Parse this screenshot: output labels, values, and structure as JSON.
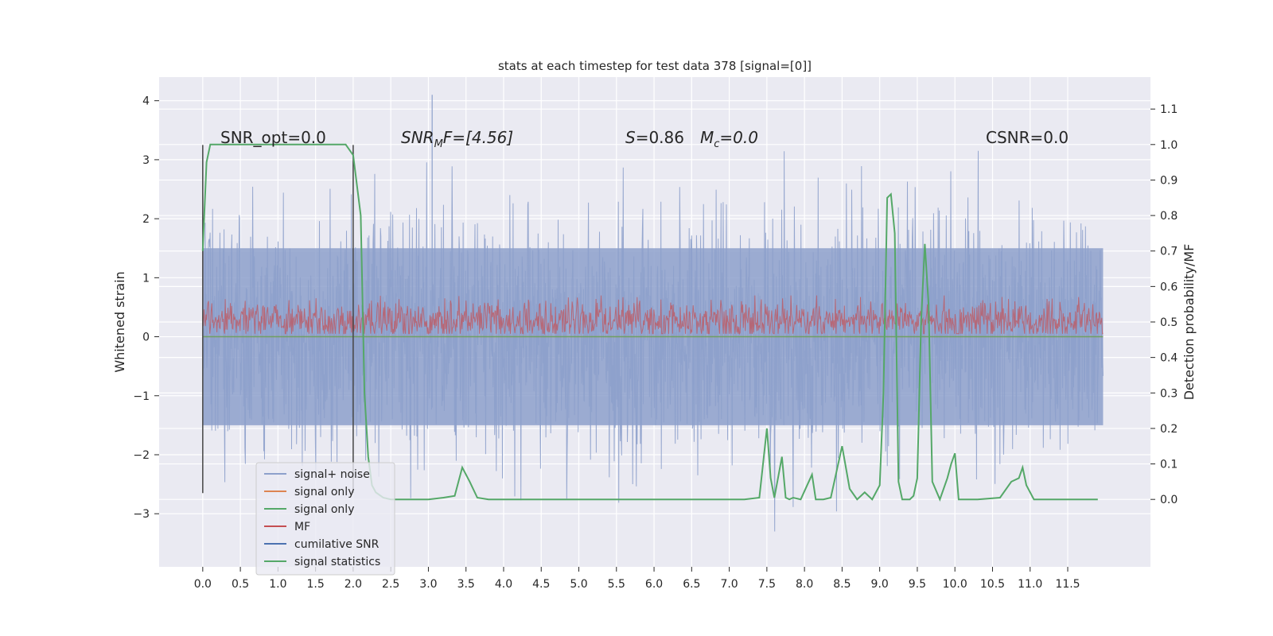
{
  "chart_data": {
    "type": "line",
    "title": "stats at each timestep for test data 378 [signal=[0]]",
    "xlabel": "",
    "ylabel": "Whitened strain",
    "ylabel_right": "Detection probability/MF",
    "xlim": [
      -0.58,
      12.6
    ],
    "ylim": [
      -3.9,
      4.4
    ],
    "ylim_right": [
      -0.19,
      1.19
    ],
    "x_ticks": [
      "0.0",
      "0.5",
      "1.0",
      "1.5",
      "2.0",
      "2.5",
      "3.0",
      "3.5",
      "4.0",
      "4.5",
      "5.0",
      "5.5",
      "6.0",
      "6.5",
      "7.0",
      "7.5",
      "8.0",
      "8.5",
      "9.0",
      "9.5",
      "10.0",
      "10.5",
      "11.0",
      "11.5"
    ],
    "y_ticks": [
      "4",
      "3",
      "2",
      "1",
      "0",
      "−1",
      "−2",
      "−3"
    ],
    "y_ticks_right": [
      "1.1",
      "1.0",
      "0.9",
      "0.8",
      "0.7",
      "0.6",
      "0.5",
      "0.4",
      "0.3",
      "0.2",
      "0.1",
      "0.0"
    ],
    "grid": true,
    "legend_position": "lower-left",
    "annotations": [
      {
        "text": "SNR_opt=0.0"
      },
      {
        "text": "SNR",
        "sub": "M",
        "tail": "F=[4.56]"
      },
      {
        "text": "S",
        "tail": "=0.86"
      },
      {
        "text": "M",
        "sub": "c",
        "tail": "=0.0"
      },
      {
        "text": "CSNR=0.0"
      }
    ],
    "vlines": [
      0.0,
      2.0
    ],
    "series": [
      {
        "name": "signal+ noise",
        "color": "#8da0cb",
        "x_range": [
          0.0,
          11.97
        ],
        "band_envelope": 1.5,
        "spike_max": 4.1
      },
      {
        "name": "signal only",
        "color": "#dd8452",
        "x_range": [
          0.0,
          11.97
        ],
        "values": [
          0
        ]
      },
      {
        "name": "signal only",
        "color": "#55a868",
        "x_range": [
          0.0,
          11.97
        ],
        "values": [
          0
        ]
      },
      {
        "name": "MF",
        "color": "#c44e52",
        "x_range": [
          0.0,
          11.97
        ],
        "band": [
          0.05,
          0.7
        ],
        "center": 0.27
      },
      {
        "name": "cumilative SNR",
        "color": "#4c72b0"
      },
      {
        "name": "signal statistics",
        "color": "#55a868",
        "axis": "right",
        "x": [
          0.0,
          0.05,
          0.1,
          0.2,
          0.5,
          1.0,
          1.5,
          1.8,
          1.9,
          2.0,
          2.1,
          2.15,
          2.2,
          2.25,
          2.3,
          2.4,
          2.5,
          3.0,
          3.2,
          3.35,
          3.45,
          3.55,
          3.65,
          3.8,
          4.5,
          5.5,
          6.5,
          7.2,
          7.4,
          7.5,
          7.55,
          7.6,
          7.7,
          7.75,
          7.8,
          7.85,
          7.95,
          8.1,
          8.15,
          8.25,
          8.35,
          8.5,
          8.6,
          8.7,
          8.8,
          8.9,
          9.0,
          9.05,
          9.1,
          9.15,
          9.2,
          9.25,
          9.3,
          9.4,
          9.45,
          9.5,
          9.55,
          9.6,
          9.65,
          9.7,
          9.8,
          9.9,
          9.95,
          10.0,
          10.05,
          10.1,
          10.3,
          10.6,
          10.75,
          10.85,
          10.9,
          10.95,
          11.05,
          11.2,
          11.6,
          11.9
        ],
        "values": [
          0.7,
          0.95,
          1.0,
          1.0,
          1.0,
          1.0,
          1.0,
          1.0,
          1.0,
          0.97,
          0.8,
          0.3,
          0.12,
          0.04,
          0.02,
          0.005,
          0.0,
          0.0,
          0.005,
          0.01,
          0.09,
          0.05,
          0.005,
          0.0,
          0.0,
          0.0,
          0.0,
          0.0,
          0.005,
          0.2,
          0.06,
          0.005,
          0.12,
          0.005,
          0.0,
          0.005,
          0.0,
          0.07,
          0.0,
          0.0,
          0.005,
          0.15,
          0.03,
          0.0,
          0.02,
          0.0,
          0.04,
          0.3,
          0.85,
          0.86,
          0.75,
          0.05,
          0.0,
          0.0,
          0.01,
          0.06,
          0.5,
          0.72,
          0.55,
          0.05,
          0.0,
          0.06,
          0.1,
          0.13,
          0.0,
          0.0,
          0.0,
          0.005,
          0.05,
          0.06,
          0.09,
          0.04,
          0.0,
          0.0,
          0.0,
          0.0
        ]
      }
    ]
  }
}
